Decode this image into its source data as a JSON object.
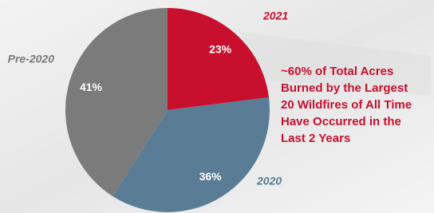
{
  "chart_data": {
    "type": "pie",
    "categories": [
      "2021",
      "2020",
      "Pre-2020"
    ],
    "values": [
      23,
      36,
      41
    ],
    "value_labels": [
      "23%",
      "36%",
      "41%"
    ],
    "colors": [
      "#c8102e",
      "#5a7d95",
      "#7b7b7b"
    ],
    "annotation": [
      "~60% of Total Acres",
      "Burned by the Largest",
      "20 Wildfires of All Time",
      "Have Occurred in the",
      "Last 2 Years"
    ]
  }
}
